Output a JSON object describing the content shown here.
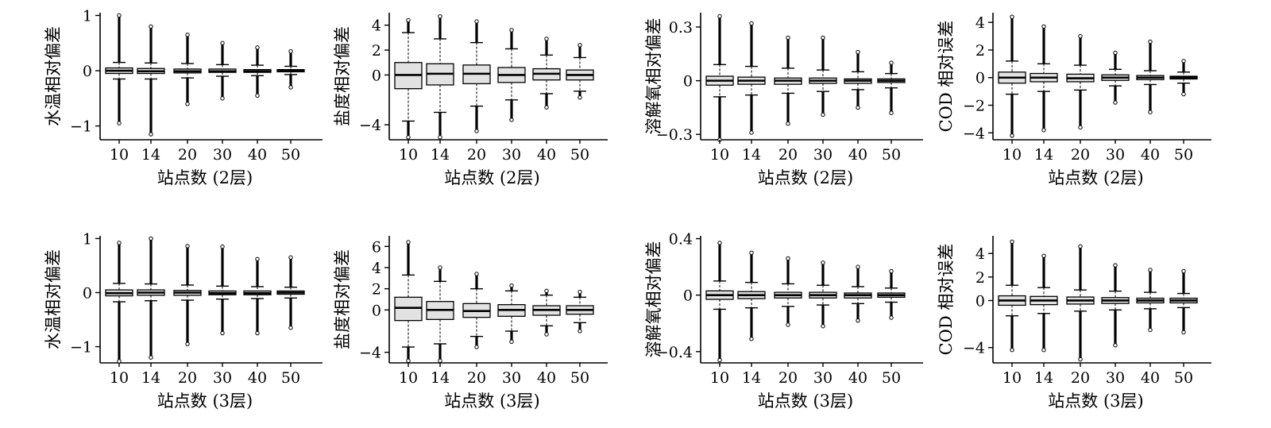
{
  "chart_data": [
    {
      "type": "box",
      "ylabel": "水温相对偏差",
      "xlabel": "站点数 (2层)",
      "categories": [
        "10",
        "14",
        "20",
        "30",
        "40",
        "50"
      ],
      "ylim": [
        -1.25,
        1.05
      ],
      "yticks": [
        1,
        0,
        -1
      ],
      "ytick_labels": [
        "1",
        "0",
        "−1"
      ],
      "boxes": [
        {
          "q1": -0.05,
          "median": 0.0,
          "q3": 0.05,
          "whisker_low": -0.15,
          "whisker_high": 0.15,
          "outlier_low": -0.95,
          "outlier_high": 1.0
        },
        {
          "q1": -0.05,
          "median": -0.01,
          "q3": 0.04,
          "whisker_low": -0.15,
          "whisker_high": 0.14,
          "outlier_low": -1.15,
          "outlier_high": 0.8
        },
        {
          "q1": -0.04,
          "median": -0.01,
          "q3": 0.03,
          "whisker_low": -0.13,
          "whisker_high": 0.13,
          "outlier_low": -0.6,
          "outlier_high": 0.65
        },
        {
          "q1": -0.03,
          "median": -0.01,
          "q3": 0.03,
          "whisker_low": -0.1,
          "whisker_high": 0.11,
          "outlier_low": -0.5,
          "outlier_high": 0.5
        },
        {
          "q1": -0.03,
          "median": -0.01,
          "q3": 0.02,
          "whisker_low": -0.09,
          "whisker_high": 0.1,
          "outlier_low": -0.45,
          "outlier_high": 0.42
        },
        {
          "q1": -0.02,
          "median": 0.0,
          "q3": 0.02,
          "whisker_low": -0.07,
          "whisker_high": 0.08,
          "outlier_low": -0.3,
          "outlier_high": 0.35
        }
      ]
    },
    {
      "type": "box",
      "ylabel": "盐度相对偏差",
      "xlabel": "站点数 (2层)",
      "categories": [
        "10",
        "14",
        "20",
        "30",
        "40",
        "50"
      ],
      "ylim": [
        -5.2,
        5.0
      ],
      "yticks": [
        4,
        2,
        0,
        -4
      ],
      "ytick_labels": [
        "4",
        "2",
        "0",
        "−4"
      ],
      "boxes": [
        {
          "q1": -1.1,
          "median": 0.0,
          "q3": 1.0,
          "whisker_low": -3.7,
          "whisker_high": 3.4,
          "outlier_low": -5.0,
          "outlier_high": 4.4
        },
        {
          "q1": -0.8,
          "median": 0.1,
          "q3": 0.9,
          "whisker_low": -3.0,
          "whisker_high": 2.9,
          "outlier_low": -5.0,
          "outlier_high": 4.7
        },
        {
          "q1": -0.7,
          "median": 0.1,
          "q3": 0.8,
          "whisker_low": -2.5,
          "whisker_high": 2.6,
          "outlier_low": -4.5,
          "outlier_high": 4.3
        },
        {
          "q1": -0.6,
          "median": 0.0,
          "q3": 0.6,
          "whisker_low": -2.0,
          "whisker_high": 2.1,
          "outlier_low": -3.6,
          "outlier_high": 3.6
        },
        {
          "q1": -0.4,
          "median": 0.1,
          "q3": 0.5,
          "whisker_low": -1.5,
          "whisker_high": 1.6,
          "outlier_low": -2.6,
          "outlier_high": 2.9
        },
        {
          "q1": -0.4,
          "median": 0.0,
          "q3": 0.4,
          "whisker_low": -1.3,
          "whisker_high": 1.4,
          "outlier_low": -1.8,
          "outlier_high": 2.4
        }
      ]
    },
    {
      "type": "box",
      "ylabel": "溶解氧相对偏差",
      "xlabel": "站点数 (2层)",
      "categories": [
        "10",
        "14",
        "20",
        "30",
        "40",
        "50"
      ],
      "ylim": [
        -0.33,
        0.38
      ],
      "yticks": [
        0.3,
        0,
        -0.3
      ],
      "ytick_labels": [
        "0.3",
        "0",
        "−0.3"
      ],
      "boxes": [
        {
          "q1": -0.025,
          "median": 0.0,
          "q3": 0.025,
          "whisker_low": -0.09,
          "whisker_high": 0.09,
          "outlier_low": -0.33,
          "outlier_high": 0.36
        },
        {
          "q1": -0.02,
          "median": 0.0,
          "q3": 0.02,
          "whisker_low": -0.08,
          "whisker_high": 0.08,
          "outlier_low": -0.29,
          "outlier_high": 0.32
        },
        {
          "q1": -0.02,
          "median": 0.0,
          "q3": 0.015,
          "whisker_low": -0.07,
          "whisker_high": 0.07,
          "outlier_low": -0.24,
          "outlier_high": 0.24
        },
        {
          "q1": -0.015,
          "median": 0.0,
          "q3": 0.015,
          "whisker_low": -0.06,
          "whisker_high": 0.06,
          "outlier_low": -0.19,
          "outlier_high": 0.24
        },
        {
          "q1": -0.015,
          "median": 0.0,
          "q3": 0.01,
          "whisker_low": -0.05,
          "whisker_high": 0.05,
          "outlier_low": -0.15,
          "outlier_high": 0.16
        },
        {
          "q1": -0.01,
          "median": 0.0,
          "q3": 0.01,
          "whisker_low": -0.04,
          "whisker_high": 0.04,
          "outlier_low": -0.18,
          "outlier_high": 0.1
        }
      ]
    },
    {
      "type": "box",
      "ylabel": "COD 相对误差",
      "xlabel": "站点数 (2层)",
      "categories": [
        "10",
        "14",
        "20",
        "30",
        "40",
        "50"
      ],
      "ylim": [
        -4.5,
        4.7
      ],
      "yticks": [
        4,
        2,
        0,
        -2,
        -4
      ],
      "ytick_labels": [
        "4",
        "2",
        "0",
        "−2",
        "−4"
      ],
      "boxes": [
        {
          "q1": -0.4,
          "median": 0.0,
          "q3": 0.4,
          "whisker_low": -1.2,
          "whisker_high": 1.2,
          "outlier_low": -4.2,
          "outlier_high": 4.4
        },
        {
          "q1": -0.3,
          "median": 0.0,
          "q3": 0.3,
          "whisker_low": -1.0,
          "whisker_high": 1.0,
          "outlier_low": -3.8,
          "outlier_high": 3.7
        },
        {
          "q1": -0.3,
          "median": -0.05,
          "q3": 0.25,
          "whisker_low": -0.9,
          "whisker_high": 0.9,
          "outlier_low": -3.6,
          "outlier_high": 3.0
        },
        {
          "q1": -0.2,
          "median": 0.0,
          "q3": 0.2,
          "whisker_low": -0.6,
          "whisker_high": 0.6,
          "outlier_low": -1.8,
          "outlier_high": 1.8
        },
        {
          "q1": -0.15,
          "median": 0.0,
          "q3": 0.15,
          "whisker_low": -0.5,
          "whisker_high": 0.5,
          "outlier_low": -2.5,
          "outlier_high": 2.6
        },
        {
          "q1": -0.1,
          "median": 0.0,
          "q3": 0.1,
          "whisker_low": -0.4,
          "whisker_high": 0.4,
          "outlier_low": -1.2,
          "outlier_high": 1.2
        }
      ]
    },
    {
      "type": "box",
      "ylabel": "水温相对偏差",
      "xlabel": "站点数 (3层)",
      "categories": [
        "10",
        "14",
        "20",
        "30",
        "40",
        "50"
      ],
      "ylim": [
        -1.3,
        1.05
      ],
      "yticks": [
        1,
        0,
        -1
      ],
      "ytick_labels": [
        "1",
        "0",
        "−1"
      ],
      "boxes": [
        {
          "q1": -0.06,
          "median": -0.01,
          "q3": 0.05,
          "whisker_low": -0.17,
          "whisker_high": 0.17,
          "outlier_low": -1.27,
          "outlier_high": 0.92
        },
        {
          "q1": -0.05,
          "median": 0.0,
          "q3": 0.05,
          "whisker_low": -0.15,
          "whisker_high": 0.16,
          "outlier_low": -1.2,
          "outlier_high": 1.0
        },
        {
          "q1": -0.05,
          "median": 0.0,
          "q3": 0.04,
          "whisker_low": -0.14,
          "whisker_high": 0.14,
          "outlier_low": -0.95,
          "outlier_high": 0.86
        },
        {
          "q1": -0.04,
          "median": -0.01,
          "q3": 0.03,
          "whisker_low": -0.12,
          "whisker_high": 0.12,
          "outlier_low": -0.75,
          "outlier_high": 0.85
        },
        {
          "q1": -0.04,
          "median": -0.01,
          "q3": 0.03,
          "whisker_low": -0.11,
          "whisker_high": 0.11,
          "outlier_low": -0.75,
          "outlier_high": 0.62
        },
        {
          "q1": -0.03,
          "median": 0.0,
          "q3": 0.03,
          "whisker_low": -0.1,
          "whisker_high": 0.1,
          "outlier_low": -0.65,
          "outlier_high": 0.65
        }
      ]
    },
    {
      "type": "box",
      "ylabel": "盐度相对偏差",
      "xlabel": "站点数 (3层)",
      "categories": [
        "10",
        "14",
        "20",
        "30",
        "40",
        "50"
      ],
      "ylim": [
        -5.0,
        7.0
      ],
      "yticks": [
        6,
        4,
        2,
        0,
        -4
      ],
      "ytick_labels": [
        "6",
        "4",
        "2",
        "0",
        "−4"
      ],
      "boxes": [
        {
          "q1": -1.0,
          "median": 0.2,
          "q3": 1.2,
          "whisker_low": -3.5,
          "whisker_high": 3.3,
          "outlier_low": -4.8,
          "outlier_high": 6.4
        },
        {
          "q1": -0.9,
          "median": 0.0,
          "q3": 0.8,
          "whisker_low": -3.2,
          "whisker_high": 2.7,
          "outlier_low": -4.8,
          "outlier_high": 4.0
        },
        {
          "q1": -0.7,
          "median": -0.1,
          "q3": 0.6,
          "whisker_low": -2.5,
          "whisker_high": 2.0,
          "outlier_low": -3.5,
          "outlier_high": 3.4
        },
        {
          "q1": -0.6,
          "median": 0.0,
          "q3": 0.5,
          "whisker_low": -2.0,
          "whisker_high": 1.8,
          "outlier_low": -3.0,
          "outlier_high": 2.3
        },
        {
          "q1": -0.5,
          "median": 0.0,
          "q3": 0.4,
          "whisker_low": -1.5,
          "whisker_high": 1.4,
          "outlier_low": -2.3,
          "outlier_high": 1.8
        },
        {
          "q1": -0.4,
          "median": 0.0,
          "q3": 0.4,
          "whisker_low": -1.2,
          "whisker_high": 1.2,
          "outlier_low": -2.0,
          "outlier_high": 1.7
        }
      ]
    },
    {
      "type": "box",
      "ylabel": "溶解氧相对偏差",
      "xlabel": "站点数 (3层)",
      "categories": [
        "10",
        "14",
        "20",
        "30",
        "40",
        "50"
      ],
      "ylim": [
        -0.48,
        0.42
      ],
      "yticks": [
        0.4,
        0,
        -0.4
      ],
      "ytick_labels": [
        "0.4",
        "0",
        "−0.4"
      ],
      "boxes": [
        {
          "q1": -0.03,
          "median": 0.0,
          "q3": 0.03,
          "whisker_low": -0.1,
          "whisker_high": 0.1,
          "outlier_low": -0.46,
          "outlier_high": 0.37
        },
        {
          "q1": -0.025,
          "median": 0.0,
          "q3": 0.025,
          "whisker_low": -0.09,
          "whisker_high": 0.09,
          "outlier_low": -0.31,
          "outlier_high": 0.3
        },
        {
          "q1": -0.02,
          "median": 0.0,
          "q3": 0.02,
          "whisker_low": -0.08,
          "whisker_high": 0.08,
          "outlier_low": -0.21,
          "outlier_high": 0.26
        },
        {
          "q1": -0.02,
          "median": 0.0,
          "q3": 0.02,
          "whisker_low": -0.07,
          "whisker_high": 0.07,
          "outlier_low": -0.22,
          "outlier_high": 0.23
        },
        {
          "q1": -0.02,
          "median": 0.0,
          "q3": 0.015,
          "whisker_low": -0.06,
          "whisker_high": 0.06,
          "outlier_low": -0.18,
          "outlier_high": 0.2
        },
        {
          "q1": -0.015,
          "median": 0.0,
          "q3": 0.015,
          "whisker_low": -0.05,
          "whisker_high": 0.05,
          "outlier_low": -0.16,
          "outlier_high": 0.17
        }
      ]
    },
    {
      "type": "box",
      "ylabel": "COD 相对误差",
      "xlabel": "站点数 (3层)",
      "categories": [
        "10",
        "14",
        "20",
        "30",
        "40",
        "50"
      ],
      "ylim": [
        -5.3,
        5.5
      ],
      "yticks": [
        4,
        2,
        0,
        -4
      ],
      "ytick_labels": [
        "4",
        "2",
        "0",
        "−4"
      ],
      "boxes": [
        {
          "q1": -0.4,
          "median": 0.0,
          "q3": 0.4,
          "whisker_low": -1.3,
          "whisker_high": 1.3,
          "outlier_low": -4.2,
          "outlier_high": 5.0
        },
        {
          "q1": -0.35,
          "median": 0.0,
          "q3": 0.35,
          "whisker_low": -1.1,
          "whisker_high": 1.1,
          "outlier_low": -4.2,
          "outlier_high": 3.8
        },
        {
          "q1": -0.3,
          "median": 0.0,
          "q3": 0.3,
          "whisker_low": -0.9,
          "whisker_high": 0.9,
          "outlier_low": -5.0,
          "outlier_high": 4.6
        },
        {
          "q1": -0.25,
          "median": 0.0,
          "q3": 0.25,
          "whisker_low": -0.8,
          "whisker_high": 0.8,
          "outlier_low": -3.8,
          "outlier_high": 3.0
        },
        {
          "q1": -0.2,
          "median": 0.0,
          "q3": 0.2,
          "whisker_low": -0.7,
          "whisker_high": 0.7,
          "outlier_low": -2.5,
          "outlier_high": 2.6
        },
        {
          "q1": -0.2,
          "median": 0.0,
          "q3": 0.2,
          "whisker_low": -0.6,
          "whisker_high": 0.6,
          "outlier_low": -2.7,
          "outlier_high": 2.5
        }
      ]
    }
  ]
}
